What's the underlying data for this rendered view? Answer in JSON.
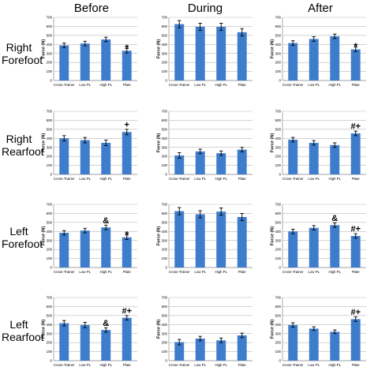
{
  "column_headers": [
    "Before",
    "During",
    "After"
  ],
  "row_headers": [
    [
      "Right",
      "Forefoot"
    ],
    [
      "Right",
      "Rearfoot"
    ],
    [
      "Left",
      "Forefoot"
    ],
    [
      "Left",
      "Rearfoot"
    ]
  ],
  "chart_style": {
    "bar_color": "#3e7dcc",
    "grid_color": "#b9b9b9",
    "error_bar_color": "#000000"
  },
  "chart_data": [
    {
      "type": "bar",
      "row": 0,
      "col": 0,
      "ylabel": "Force (N)",
      "ylim": [
        0,
        700
      ],
      "yticks": [
        0,
        100,
        200,
        300,
        400,
        500,
        600,
        700
      ],
      "categories": [
        "Cross-Trainer",
        "Low PL",
        "High PL",
        "Plate"
      ],
      "values": [
        390,
        410,
        455,
        330
      ],
      "errors": [
        25,
        25,
        25,
        25
      ],
      "annotations": [
        "",
        "",
        "",
        "*"
      ]
    },
    {
      "type": "bar",
      "row": 0,
      "col": 1,
      "ylabel": "Force (N)",
      "ylim": [
        0,
        700
      ],
      "yticks": [
        0,
        100,
        200,
        300,
        400,
        500,
        600,
        700
      ],
      "categories": [
        "Cross-Trainer",
        "Low PL",
        "High PL",
        "Plate"
      ],
      "values": [
        625,
        595,
        595,
        535
      ],
      "errors": [
        40,
        40,
        40,
        40
      ],
      "annotations": [
        "",
        "",
        "",
        ""
      ]
    },
    {
      "type": "bar",
      "row": 0,
      "col": 2,
      "ylabel": "Force (N)",
      "ylim": [
        0,
        700
      ],
      "yticks": [
        0,
        100,
        200,
        300,
        400,
        500,
        600,
        700
      ],
      "categories": [
        "Cross-Trainer",
        "Low PL",
        "High PL",
        "Plate"
      ],
      "values": [
        415,
        460,
        490,
        345
      ],
      "errors": [
        25,
        25,
        25,
        25
      ],
      "annotations": [
        "",
        "",
        "",
        "*"
      ]
    },
    {
      "type": "bar",
      "row": 1,
      "col": 0,
      "ylabel": "Force (N)",
      "ylim": [
        0,
        700
      ],
      "yticks": [
        0,
        100,
        200,
        300,
        400,
        500,
        600,
        700
      ],
      "categories": [
        "Cross-Trainer",
        "Low PL",
        "High PL",
        "Plate"
      ],
      "values": [
        400,
        380,
        350,
        470
      ],
      "errors": [
        30,
        30,
        30,
        30
      ],
      "annotations": [
        "",
        "",
        "",
        "+"
      ]
    },
    {
      "type": "bar",
      "row": 1,
      "col": 1,
      "ylabel": "Force (N)",
      "ylim": [
        0,
        700
      ],
      "yticks": [
        0,
        100,
        200,
        300,
        400,
        500,
        600,
        700
      ],
      "categories": [
        "Cross-Trainer",
        "Low PL",
        "High PL",
        "Plate"
      ],
      "values": [
        210,
        255,
        235,
        275
      ],
      "errors": [
        30,
        25,
        25,
        25
      ],
      "annotations": [
        "",
        "",
        "",
        ""
      ]
    },
    {
      "type": "bar",
      "row": 1,
      "col": 2,
      "ylabel": "Force (N)",
      "ylim": [
        0,
        700
      ],
      "yticks": [
        0,
        100,
        200,
        300,
        400,
        500,
        600,
        700
      ],
      "categories": [
        "Cross-Trainer",
        "Low PL",
        "High PL",
        "Plate"
      ],
      "values": [
        385,
        350,
        325,
        455
      ],
      "errors": [
        25,
        25,
        25,
        25
      ],
      "annotations": [
        "",
        "",
        "",
        "#+"
      ]
    },
    {
      "type": "bar",
      "row": 2,
      "col": 0,
      "ylabel": "Force (N)",
      "ylim": [
        0,
        700
      ],
      "yticks": [
        0,
        100,
        200,
        300,
        400,
        500,
        600,
        700
      ],
      "categories": [
        "Cross-Trainer",
        "Low PL",
        "High PL",
        "Plate"
      ],
      "values": [
        385,
        410,
        445,
        335
      ],
      "errors": [
        25,
        25,
        25,
        25
      ],
      "annotations": [
        "",
        "",
        "&",
        "*"
      ]
    },
    {
      "type": "bar",
      "row": 2,
      "col": 1,
      "ylabel": "Force (N)",
      "ylim": [
        0,
        700
      ],
      "yticks": [
        0,
        100,
        200,
        300,
        400,
        500,
        600,
        700
      ],
      "categories": [
        "Cross-Trainer",
        "Low PL",
        "High PL",
        "Plate"
      ],
      "values": [
        625,
        590,
        620,
        560
      ],
      "errors": [
        40,
        40,
        40,
        40
      ],
      "annotations": [
        "",
        "",
        "",
        ""
      ]
    },
    {
      "type": "bar",
      "row": 2,
      "col": 2,
      "ylabel": "Force (N)",
      "ylim": [
        0,
        700
      ],
      "yticks": [
        0,
        100,
        200,
        300,
        400,
        500,
        600,
        700
      ],
      "categories": [
        "Cross-Trainer",
        "Low PL",
        "High PL",
        "Plate"
      ],
      "values": [
        400,
        440,
        470,
        350
      ],
      "errors": [
        25,
        25,
        25,
        25
      ],
      "annotations": [
        "",
        "",
        "&",
        "#+"
      ]
    },
    {
      "type": "bar",
      "row": 3,
      "col": 0,
      "ylabel": "Force (N)",
      "ylim": [
        0,
        700
      ],
      "yticks": [
        0,
        100,
        200,
        300,
        400,
        500,
        600,
        700
      ],
      "categories": [
        "Cross-Trainer",
        "Low PL",
        "High PL",
        "Plate"
      ],
      "values": [
        415,
        395,
        340,
        475
      ],
      "errors": [
        30,
        30,
        25,
        25
      ],
      "annotations": [
        "",
        "",
        "&",
        "#+"
      ]
    },
    {
      "type": "bar",
      "row": 3,
      "col": 1,
      "ylabel": "Force (N)",
      "ylim": [
        0,
        700
      ],
      "yticks": [
        0,
        100,
        200,
        300,
        400,
        500,
        600,
        700
      ],
      "categories": [
        "Cross-Trainer",
        "Low PL",
        "High PL",
        "Plate"
      ],
      "values": [
        205,
        245,
        225,
        280
      ],
      "errors": [
        30,
        25,
        25,
        25
      ],
      "annotations": [
        "",
        "",
        "",
        ""
      ]
    },
    {
      "type": "bar",
      "row": 3,
      "col": 2,
      "ylabel": "Force (N)",
      "ylim": [
        0,
        700
      ],
      "yticks": [
        0,
        100,
        200,
        300,
        400,
        500,
        600,
        700
      ],
      "categories": [
        "Cross-Trainer",
        "Low PL",
        "High PL",
        "Plate"
      ],
      "values": [
        395,
        355,
        320,
        460
      ],
      "errors": [
        25,
        20,
        20,
        25
      ],
      "annotations": [
        "",
        "",
        "",
        "#+"
      ]
    }
  ]
}
